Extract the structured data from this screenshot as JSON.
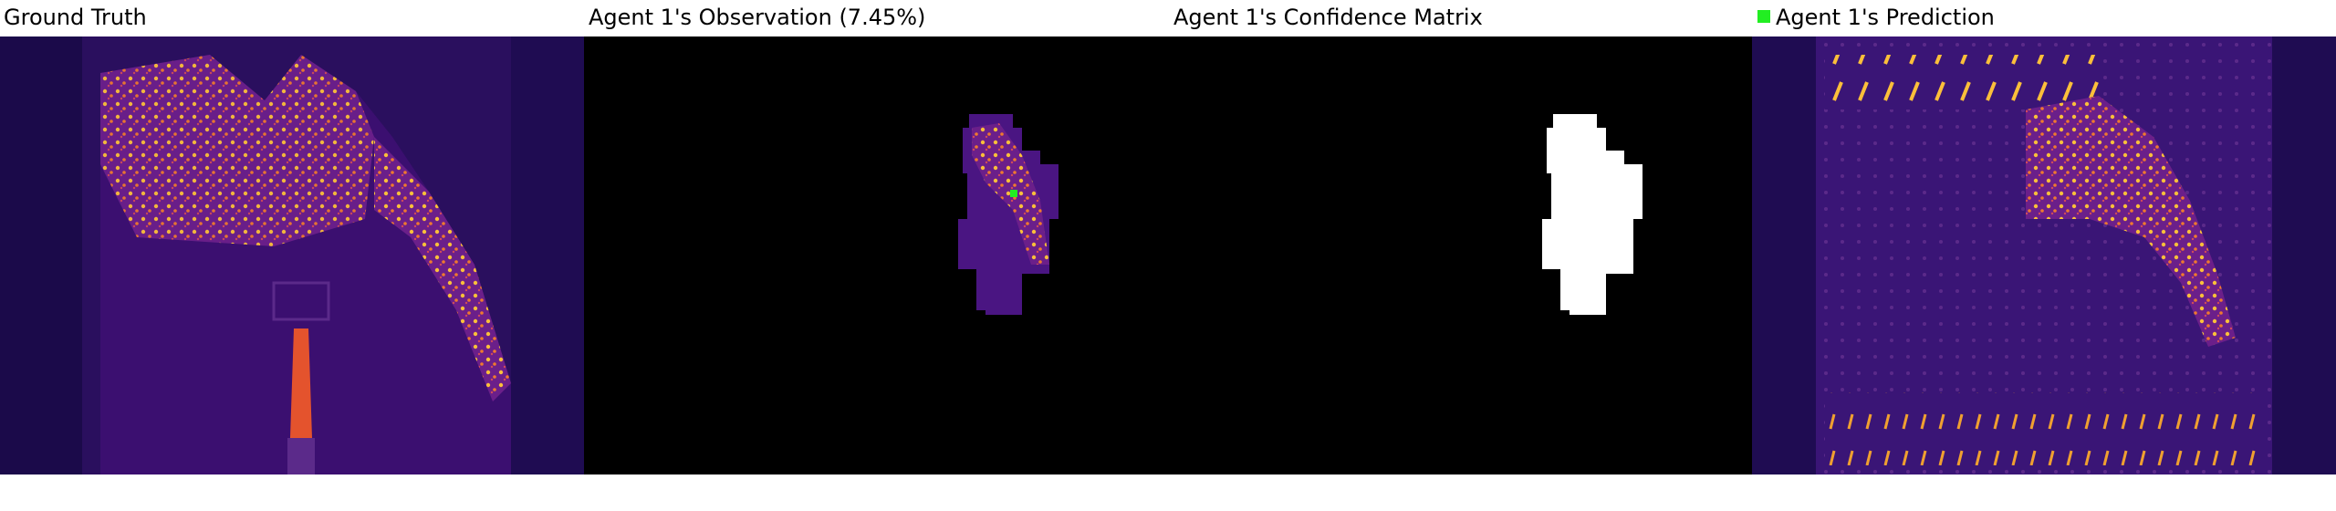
{
  "panels": [
    {
      "title": "Ground Truth"
    },
    {
      "title": "Agent 1's Observation (7.45%)"
    },
    {
      "title": "Agent 1's Confidence Matrix"
    },
    {
      "title": "Agent 1's Prediction"
    }
  ],
  "legend": {
    "swatch_color": "#22ee22"
  },
  "colors": {
    "background_dark": "#1b0a4a",
    "heat_low": "#3b0f70",
    "heat_mid": "#b5367a",
    "heat_high": "#fcbf3a",
    "mask": "#ffffff",
    "black": "#000000"
  }
}
